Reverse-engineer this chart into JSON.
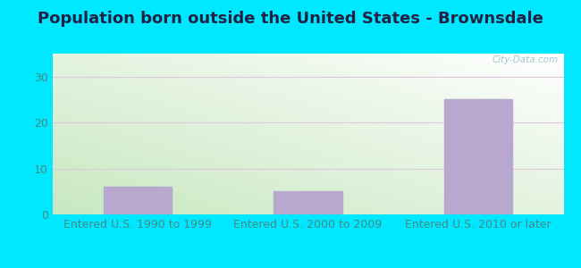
{
  "title": "Population born outside the United States - Brownsdale",
  "categories": [
    "Entered U.S. 1990 to 1999",
    "Entered U.S. 2000 to 2009",
    "Entered U.S. 2010 or later"
  ],
  "values": [
    6,
    5,
    25
  ],
  "bar_color": "#b8a8d0",
  "ylim": [
    0,
    35
  ],
  "yticks": [
    0,
    10,
    20,
    30
  ],
  "bg_topleft": "#c8e8c0",
  "bg_topright": "#f0f8ff",
  "bg_bottomright": "#ffffff",
  "bg_bottomleft": "#d8eecc",
  "outer_background": "#00e8ff",
  "title_fontsize": 13,
  "tick_label_fontsize": 9,
  "tick_label_color": "#448888",
  "watermark_text": "City-Data.com",
  "grid_color": "#ddc8dd",
  "title_fontweight": "bold",
  "title_color": "#222244"
}
